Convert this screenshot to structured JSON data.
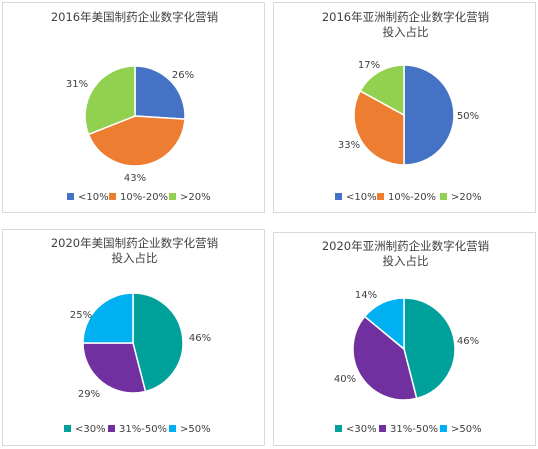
{
  "chart_data": [
    {
      "type": "pie",
      "title_lines": [
        "2016年美国制药企业数字化营销",
        ""
      ],
      "categories": [
        "<10%",
        "10%-20%",
        ">20%"
      ],
      "values": [
        26,
        43,
        31
      ],
      "value_labels": [
        "26%",
        "43%",
        "31%"
      ],
      "colors": [
        "#4472c4",
        "#ed7d31",
        "#92d050"
      ],
      "legend_position": "bottom"
    },
    {
      "type": "pie",
      "title_lines": [
        "2016年亚洲制药企业数字化营销",
        "投入占比"
      ],
      "categories": [
        "<10%",
        "10%-20%",
        ">20%"
      ],
      "values": [
        50,
        33,
        17
      ],
      "value_labels": [
        "50%",
        "33%",
        "17%"
      ],
      "colors": [
        "#4472c4",
        "#ed7d31",
        "#92d050"
      ],
      "legend_position": "bottom"
    },
    {
      "type": "pie",
      "title_lines": [
        "2020年美国制药企业数字化营销",
        "投入占比"
      ],
      "categories": [
        "<30%",
        "31%-50%",
        ">50%"
      ],
      "values": [
        46,
        29,
        25
      ],
      "value_labels": [
        "46%",
        "29%",
        "25%"
      ],
      "colors": [
        "#00a19a",
        "#7030a0",
        "#00b0f0"
      ],
      "legend_position": "bottom"
    },
    {
      "type": "pie",
      "title_lines": [
        "2020年亚洲制药企业数字化营销",
        "投入占比"
      ],
      "categories": [
        "<30%",
        "31%-50%",
        ">50%"
      ],
      "values": [
        46,
        40,
        14
      ],
      "value_labels": [
        "46%",
        "40%",
        "14%"
      ],
      "colors": [
        "#00a19a",
        "#7030a0",
        "#00b0f0"
      ],
      "legend_position": "bottom"
    }
  ]
}
